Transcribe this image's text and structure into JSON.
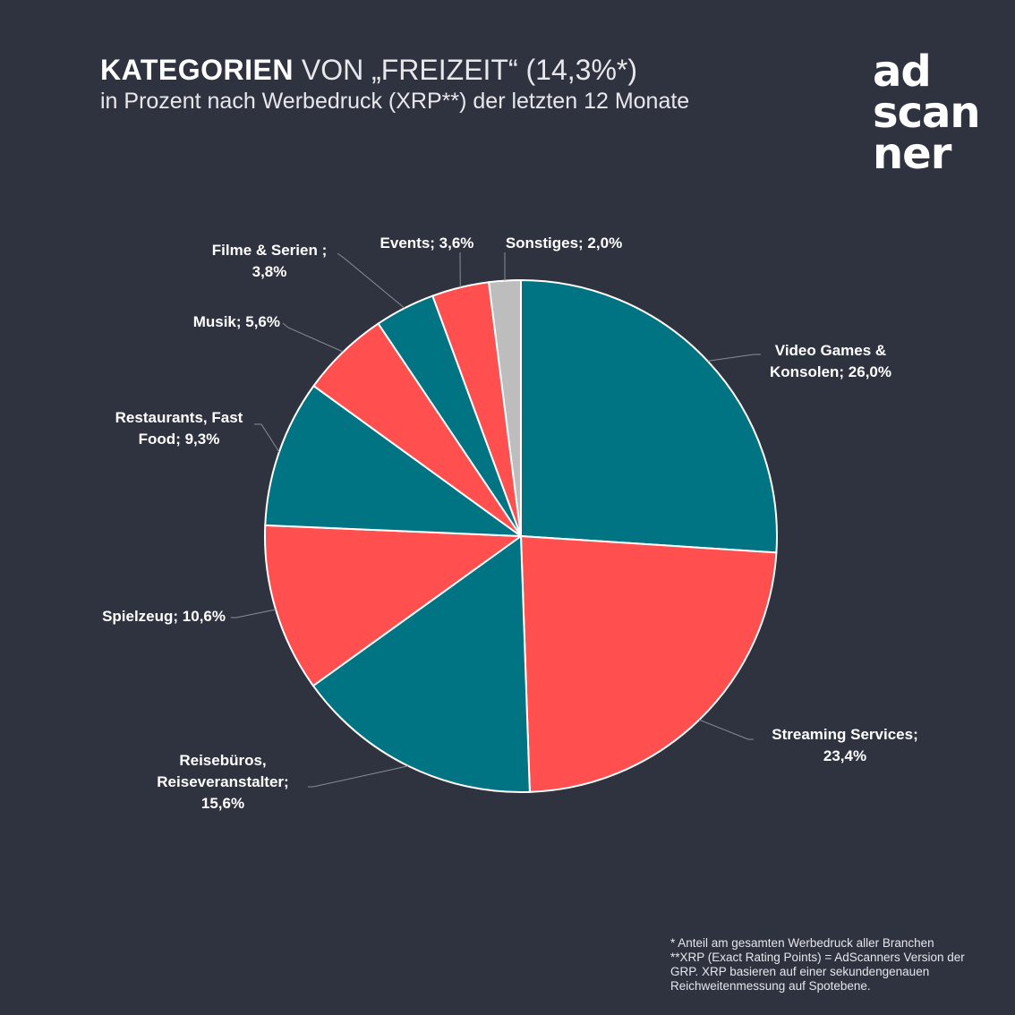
{
  "header": {
    "title_bold": "KATEGORIEN",
    "title_rest": "VON „FREIZEIT“ (14,3%*)",
    "subtitle": "in Prozent nach Werbedruck (XRP**) der letzten 12 Monate"
  },
  "logo": {
    "lines": [
      "ad",
      "scan",
      "ner"
    ]
  },
  "colors": {
    "teal": "#007483",
    "red": "#ff4f4f",
    "gray": "#bdbdbd",
    "background": "#2f3340"
  },
  "chart_data": {
    "type": "pie",
    "title": "KATEGORIEN VON „FREIZEIT“ (14,3%*)",
    "start": "12 o'clock, clockwise",
    "slices": [
      {
        "category": "Video Games & Konsolen",
        "value": 26.0,
        "color": "#007483",
        "label_lines": [
          "Video Games &",
          "Konsolen; 26,0%"
        ]
      },
      {
        "category": "Streaming Services",
        "value": 23.4,
        "color": "#ff4f4f",
        "label_lines": [
          "Streaming Services;",
          "23,4%"
        ]
      },
      {
        "category": "Reisebüros, Reiseveranstalter",
        "value": 15.6,
        "color": "#007483",
        "label_lines": [
          "Reisebüros,",
          "Reiseveranstalter;",
          "15,6%"
        ]
      },
      {
        "category": "Spielzeug",
        "value": 10.6,
        "color": "#ff4f4f",
        "label_lines": [
          "Spielzeug; 10,6%"
        ]
      },
      {
        "category": "Restaurants, Fast Food",
        "value": 9.3,
        "color": "#007483",
        "label_lines": [
          "Restaurants, Fast",
          "Food; 9,3%"
        ]
      },
      {
        "category": "Musik",
        "value": 5.6,
        "color": "#ff4f4f",
        "label_lines": [
          "Musik; 5,6%"
        ]
      },
      {
        "category": "Filme & Serien",
        "value": 3.8,
        "color": "#007483",
        "label_lines": [
          "Filme & Serien ;",
          "3,8%"
        ]
      },
      {
        "category": "Events",
        "value": 3.6,
        "color": "#ff4f4f",
        "label_lines": [
          "Events; 3,6%"
        ]
      },
      {
        "category": "Sonstiges",
        "value": 2.0,
        "color": "#bdbdbd",
        "label_lines": [
          "Sonstiges; 2,0%"
        ]
      }
    ]
  },
  "footnotes": [
    "* Anteil am gesamten Werbedruck aller Branchen",
    "**XRP (Exact Rating Points) = AdScanners Version der",
    "GRP. XRP basieren auf einer sekundengenauen",
    "Reichweitenmessung auf Spotebene."
  ]
}
